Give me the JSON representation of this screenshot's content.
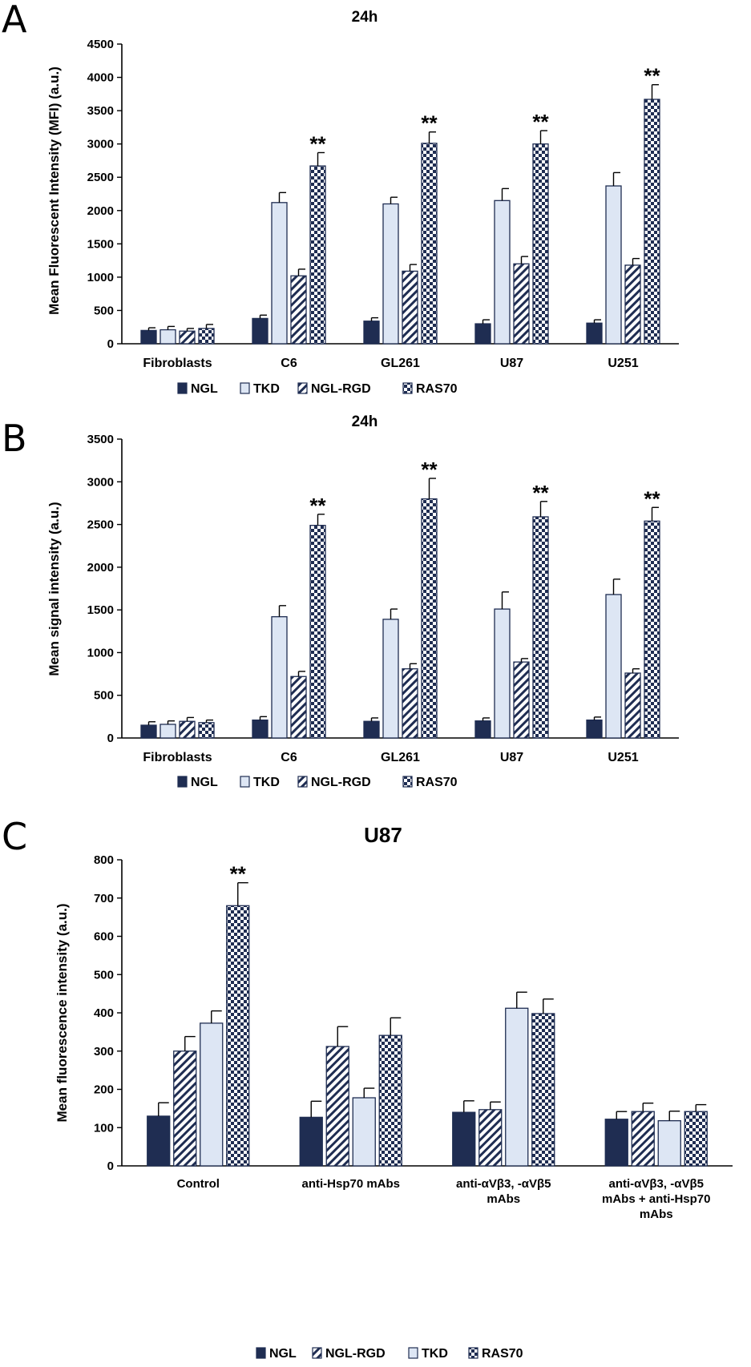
{
  "colors": {
    "NGL": "#1f2d52",
    "TKD": "#dde6f4",
    "NGL-RGD": "#1f2d52",
    "RAS70": "#1f2d52",
    "axis": "#000000"
  },
  "chart_data": [
    {
      "panel": "A",
      "type": "bar",
      "title": "24h",
      "ylabel": "Mean Fluorescent Intensity (MFI) (a.u.)",
      "xlabel": "",
      "ylim": [
        0,
        4500
      ],
      "yticks": [
        0,
        500,
        1000,
        1500,
        2000,
        2500,
        3000,
        3500,
        4000,
        4500
      ],
      "categories": [
        "Fibroblasts",
        "C6",
        "GL261",
        "U87",
        "U251"
      ],
      "series": [
        {
          "name": "NGL",
          "pattern": "solid",
          "values": [
            200,
            380,
            340,
            300,
            310
          ],
          "errors": [
            40,
            50,
            50,
            60,
            50
          ]
        },
        {
          "name": "TKD",
          "pattern": "light",
          "values": [
            210,
            2120,
            2100,
            2150,
            2370
          ],
          "errors": [
            50,
            150,
            100,
            180,
            200
          ]
        },
        {
          "name": "NGL-RGD",
          "pattern": "hatch",
          "values": [
            190,
            1020,
            1090,
            1200,
            1180
          ],
          "errors": [
            40,
            100,
            100,
            110,
            100
          ]
        },
        {
          "name": "RAS70",
          "pattern": "checker",
          "values": [
            230,
            2670,
            3010,
            3000,
            3670
          ],
          "errors": [
            60,
            200,
            170,
            200,
            220
          ]
        }
      ],
      "significance": [
        {
          "category": "C6",
          "series": "RAS70",
          "label": "**"
        },
        {
          "category": "GL261",
          "series": "RAS70",
          "label": "**"
        },
        {
          "category": "U87",
          "series": "RAS70",
          "label": "**"
        },
        {
          "category": "U251",
          "series": "RAS70",
          "label": "**"
        }
      ],
      "legend_order": [
        "NGL",
        "TKD",
        "NGL-RGD",
        "RAS70"
      ],
      "legend_position": "bottom"
    },
    {
      "panel": "B",
      "type": "bar",
      "title": "24h",
      "ylabel": "Mean signal intensity (a.u.)",
      "xlabel": "",
      "ylim": [
        0,
        3500
      ],
      "yticks": [
        0,
        500,
        1000,
        1500,
        2000,
        2500,
        3000,
        3500
      ],
      "categories": [
        "Fibroblasts",
        "C6",
        "GL261",
        "U87",
        "U251"
      ],
      "series": [
        {
          "name": "NGL",
          "pattern": "solid",
          "values": [
            150,
            210,
            195,
            200,
            210
          ],
          "errors": [
            40,
            40,
            40,
            35,
            35
          ]
        },
        {
          "name": "TKD",
          "pattern": "light",
          "values": [
            160,
            1420,
            1390,
            1510,
            1680
          ],
          "errors": [
            40,
            130,
            120,
            200,
            180
          ]
        },
        {
          "name": "NGL-RGD",
          "pattern": "hatch",
          "values": [
            195,
            720,
            810,
            890,
            760
          ],
          "errors": [
            45,
            60,
            60,
            40,
            50
          ]
        },
        {
          "name": "RAS70",
          "pattern": "checker",
          "values": [
            180,
            2490,
            2800,
            2590,
            2540
          ],
          "errors": [
            30,
            130,
            240,
            180,
            160
          ]
        }
      ],
      "significance": [
        {
          "category": "C6",
          "series": "RAS70",
          "label": "**"
        },
        {
          "category": "GL261",
          "series": "RAS70",
          "label": "**"
        },
        {
          "category": "U87",
          "series": "RAS70",
          "label": "**"
        },
        {
          "category": "U251",
          "series": "RAS70",
          "label": "**"
        }
      ],
      "legend_order": [
        "NGL",
        "TKD",
        "NGL-RGD",
        "RAS70"
      ],
      "legend_position": "bottom"
    },
    {
      "panel": "C",
      "type": "bar",
      "title": "U87",
      "ylabel": "Mean fluorescence intensity (a.u.)",
      "xlabel": "",
      "ylim": [
        0,
        800
      ],
      "yticks": [
        0,
        100,
        200,
        300,
        400,
        500,
        600,
        700,
        800
      ],
      "categories": [
        [
          "Control"
        ],
        [
          "anti-Hsp70 mAbs"
        ],
        [
          "anti-αVβ3, -αVβ5",
          "mAbs"
        ],
        [
          "anti-αVβ3, -αVβ5",
          "mAbs + anti-Hsp70",
          "mAbs"
        ]
      ],
      "series": [
        {
          "name": "NGL",
          "pattern": "solid",
          "values": [
            130,
            127,
            140,
            122
          ],
          "errors": [
            35,
            42,
            30,
            20
          ]
        },
        {
          "name": "NGL-RGD",
          "pattern": "hatch",
          "values": [
            300,
            312,
            147,
            142
          ],
          "errors": [
            38,
            52,
            20,
            22
          ]
        },
        {
          "name": "TKD",
          "pattern": "light",
          "values": [
            373,
            178,
            412,
            118
          ],
          "errors": [
            32,
            25,
            42,
            25
          ]
        },
        {
          "name": "RAS70",
          "pattern": "checker",
          "values": [
            680,
            341,
            398,
            142
          ],
          "errors": [
            60,
            46,
            38,
            18
          ]
        }
      ],
      "significance": [
        {
          "category": 0,
          "series": "RAS70",
          "label": "**"
        }
      ],
      "legend_order": [
        "NGL",
        "NGL-RGD",
        "TKD",
        "RAS70"
      ],
      "legend_position": "bottom"
    }
  ]
}
